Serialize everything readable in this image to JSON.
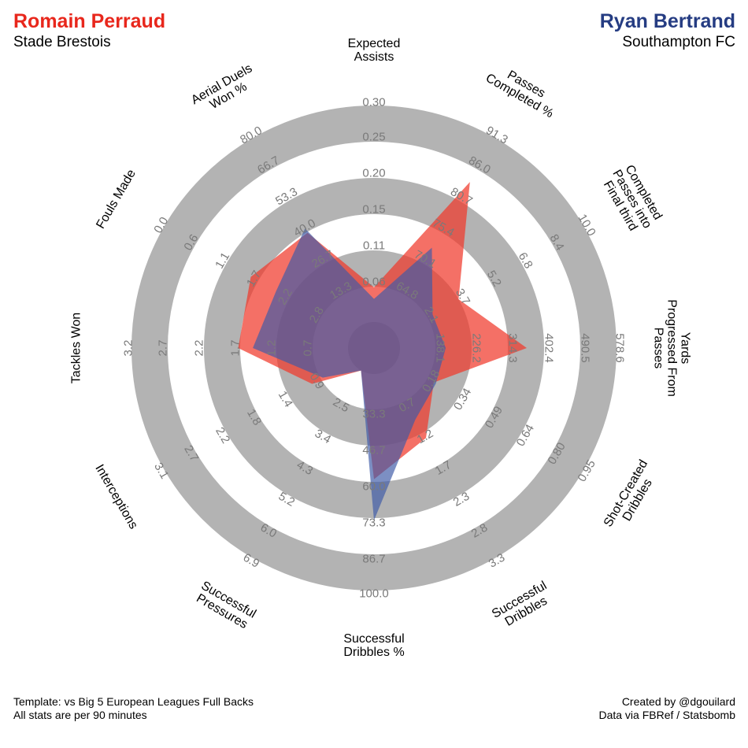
{
  "header": {
    "player1": {
      "name": "Romain Perraud",
      "team": "Stade Brestois",
      "color": "#e8271c"
    },
    "player2": {
      "name": "Ryan Bertrand",
      "team": "Southampton FC",
      "color": "#253c82"
    }
  },
  "footer": {
    "template_line": "Template: vs Big 5 European Leagues Full Backs",
    "per90_line": "All stats are per 90 minutes",
    "credit_line": "Created by @dgouilard",
    "source_line": "Data via FBRef / Statsbomb"
  },
  "colors": {
    "player1_fill": "#f0392b",
    "player2_fill": "#3e5aa6",
    "ring": "#b3b3b3",
    "tick_label": "#7a7a7a"
  },
  "chart_data": {
    "type": "radar",
    "title": "",
    "series": [
      {
        "name": "Romain Perraud",
        "values": [
          0.06,
          83.5,
          3.6,
          355.0,
          0.21,
          1.3,
          58.3,
          0.5,
          1.0,
          1.7,
          1.6,
          39.0
        ]
      },
      {
        "name": "Ryan Bertrand",
        "values": [
          0.045,
          72.5,
          2.3,
          160.0,
          0.22,
          1.0,
          73.3,
          1.1,
          0.85,
          1.5,
          2.05,
          40.8
        ]
      }
    ],
    "axes": [
      {
        "label": "Expected Assists",
        "label_lines": [
          "Expected",
          "Assists"
        ],
        "ticks": [
          "0.06",
          "0.11",
          "0.15",
          "0.20",
          "0.25",
          "0.30"
        ],
        "min": 0.015,
        "max": 0.3
      },
      {
        "label": "Passes Completed %",
        "label_lines": [
          "Passes",
          "Completed %"
        ],
        "ticks": [
          "64.8",
          "70.1",
          "75.4",
          "80.7",
          "86.0",
          "91.3"
        ],
        "min": 59.5,
        "max": 91.3
      },
      {
        "label": "Completed Passes into Final third",
        "label_lines": [
          "Completed",
          "Passes into",
          "Final third"
        ],
        "ticks": [
          "2.1",
          "3.7",
          "5.2",
          "6.8",
          "8.4",
          "10.0"
        ],
        "min": 0.5,
        "max": 10.0
      },
      {
        "label": "Yards Progressed From Passes",
        "label_lines": [
          "Yards",
          "Progressed From",
          "Passes"
        ],
        "ticks": [
          "138.1",
          "226.2",
          "314.3",
          "402.4",
          "490.5",
          "578.6"
        ],
        "min": 50.0,
        "max": 578.6
      },
      {
        "label": "Shot-Created Dribbles",
        "label_lines": [
          "Shot-Created",
          "Dribbles"
        ],
        "ticks": [
          "0.18",
          "0.34",
          "0.49",
          "0.64",
          "0.80",
          "0.95"
        ],
        "min": 0.03,
        "max": 0.95
      },
      {
        "label": "Successful Dribbles",
        "label_lines": [
          "Successful",
          "Dribbles"
        ],
        "ticks": [
          "0.7",
          "1.2",
          "1.7",
          "2.3",
          "2.8",
          "3.3"
        ],
        "min": 0.2,
        "max": 3.3
      },
      {
        "label": "Successful Dribbles %",
        "label_lines": [
          "Successful",
          "Dribbles %"
        ],
        "ticks": [
          "33.3",
          "46.7",
          "60.0",
          "73.3",
          "86.7",
          "100.0"
        ],
        "min": 20.0,
        "max": 100.0
      },
      {
        "label": "Successful Pressures",
        "label_lines": [
          "Successful",
          "Pressures"
        ],
        "ticks": [
          "2.5",
          "3.4",
          "4.3",
          "5.2",
          "6.0",
          "6.9"
        ],
        "min": 1.6,
        "max": 6.9
      },
      {
        "label": "Interceptions",
        "label_lines": [
          "Interceptions"
        ],
        "ticks": [
          "0.9",
          "1.4",
          "1.8",
          "2.2",
          "2.7",
          "3.1"
        ],
        "min": 0.45,
        "max": 3.1
      },
      {
        "label": "Tackles Won",
        "label_lines": [
          "Tackles Won"
        ],
        "ticks": [
          "0.7",
          "1.2",
          "1.7",
          "2.2",
          "2.7",
          "3.2"
        ],
        "min": 0.2,
        "max": 3.2
      },
      {
        "label": "Fouls Made",
        "label_lines": [
          "Fouls Made"
        ],
        "ticks": [
          "2.8",
          "2.2",
          "1.7",
          "1.1",
          "0.6",
          "0.0"
        ],
        "min": 3.4,
        "max": 0.0
      },
      {
        "label": "Aerial Duels Won %",
        "label_lines": [
          "Aerial Duels",
          "Won %"
        ],
        "ticks": [
          "13.3",
          "26.7",
          "40.0",
          "53.3",
          "66.7",
          "80.0"
        ],
        "min": 0.0,
        "max": 80.0
      }
    ]
  }
}
